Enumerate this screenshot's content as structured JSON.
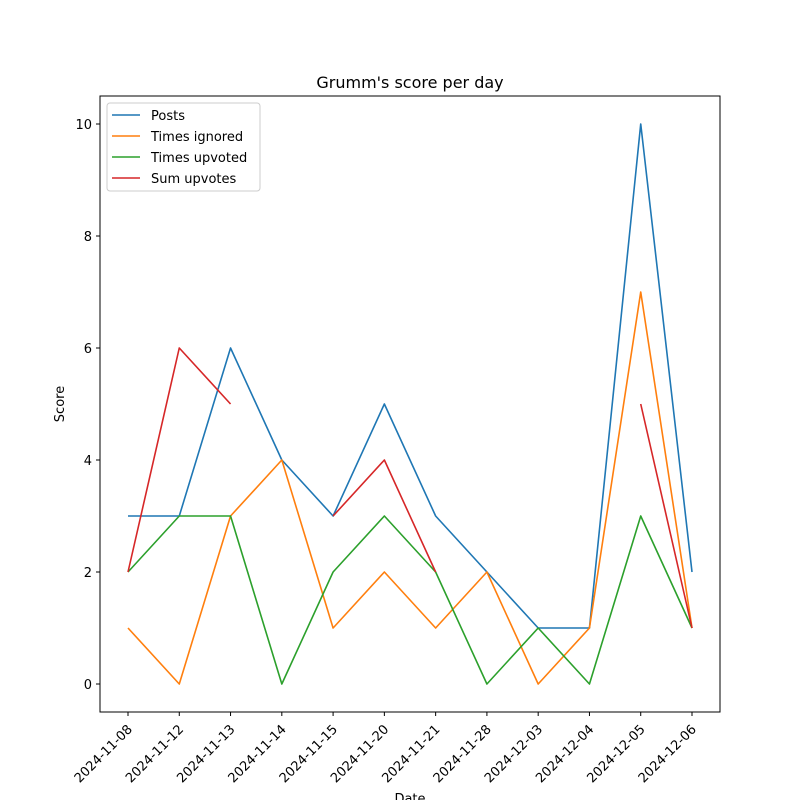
{
  "chart_data": {
    "type": "line",
    "title": "Grumm's score per day",
    "xlabel": "Date",
    "ylabel": "Score",
    "categories": [
      "2024-11-08",
      "2024-11-12",
      "2024-11-13",
      "2024-11-14",
      "2024-11-15",
      "2024-11-20",
      "2024-11-21",
      "2024-11-28",
      "2024-12-03",
      "2024-12-04",
      "2024-12-05",
      "2024-12-06"
    ],
    "ylim": [
      -0.5,
      10.5
    ],
    "yticks": [
      0,
      2,
      4,
      6,
      8,
      10
    ],
    "grid": false,
    "legend_position": "top-left",
    "series": [
      {
        "name": "Posts",
        "color": "#1f77b4",
        "values": [
          3,
          3,
          6,
          4,
          3,
          5,
          3,
          2,
          1,
          1,
          10,
          2
        ]
      },
      {
        "name": "Times ignored",
        "color": "#ff7f0e",
        "values": [
          1,
          0,
          3,
          4,
          1,
          2,
          1,
          2,
          0,
          1,
          7,
          1
        ]
      },
      {
        "name": "Times upvoted",
        "color": "#2ca02c",
        "values": [
          2,
          3,
          3,
          0,
          2,
          3,
          2,
          0,
          1,
          0,
          3,
          1
        ]
      },
      {
        "name": "Sum upvotes",
        "color": "#d62728",
        "values": [
          2,
          6,
          5,
          null,
          3,
          4,
          2,
          null,
          null,
          null,
          5,
          1
        ]
      }
    ]
  }
}
